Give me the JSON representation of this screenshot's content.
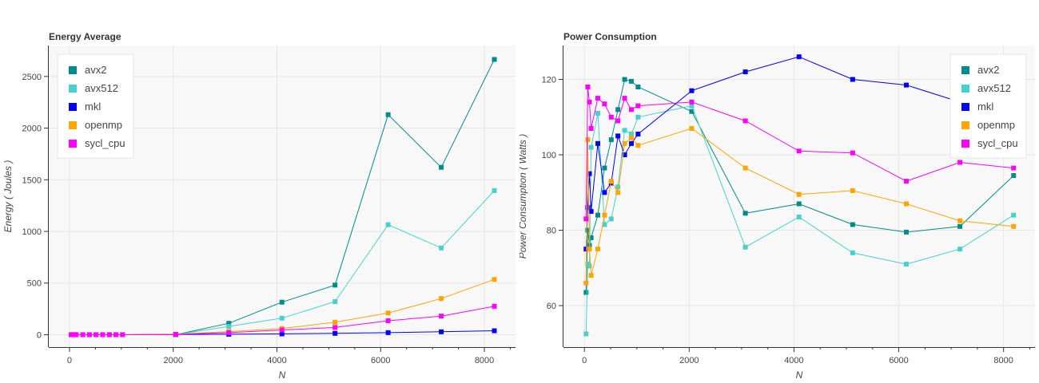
{
  "colors": {
    "avx2": "#008b8b",
    "avx512": "#48d1cc",
    "mkl": "#0000ff",
    "openmp": "#ffa500",
    "sycl_cpu": "#ff00ff"
  },
  "chart_data": [
    {
      "type": "line",
      "title": "Energy Average",
      "xlabel": "N",
      "ylabel": "Energy ( Joules )",
      "xlim": [
        -400,
        8600
      ],
      "ylim": [
        -120,
        2800
      ],
      "xticks": [
        0,
        2000,
        4000,
        6000,
        8000
      ],
      "yticks": [
        0,
        500,
        1000,
        1500,
        2000,
        2500
      ],
      "grid": true,
      "legend_position": "top-left",
      "series": [
        {
          "name": "avx2",
          "x": [
            2048,
            3072,
            4096,
            5120,
            6144,
            7168,
            8192
          ],
          "y": [
            0,
            110,
            315,
            480,
            2130,
            1620,
            2665
          ]
        },
        {
          "name": "avx512",
          "x": [
            2048,
            3072,
            4096,
            5120,
            6144,
            7168,
            8192
          ],
          "y": [
            0,
            80,
            160,
            320,
            1065,
            840,
            1395
          ]
        },
        {
          "name": "mkl",
          "x": [
            32,
            64,
            96,
            128,
            256,
            384,
            512,
            640,
            768,
            896,
            1024,
            2048,
            3072,
            4096,
            5120,
            6144,
            7168,
            8192
          ],
          "y": [
            0,
            0,
            0,
            0,
            0,
            0,
            0,
            0,
            0,
            0,
            0,
            2,
            4,
            8,
            13,
            20,
            28,
            38
          ]
        },
        {
          "name": "openmp",
          "x": [
            32,
            64,
            96,
            128,
            256,
            384,
            512,
            640,
            768,
            896,
            1024,
            2048,
            3072,
            4096,
            5120,
            6144,
            7168,
            8192
          ],
          "y": [
            0,
            0,
            0,
            0,
            0,
            0,
            0,
            0,
            0,
            0,
            0,
            5,
            30,
            60,
            120,
            210,
            350,
            535
          ]
        },
        {
          "name": "sycl_cpu",
          "x": [
            32,
            64,
            96,
            128,
            256,
            384,
            512,
            640,
            768,
            896,
            1024,
            2048,
            3072,
            4096,
            5120,
            6144,
            7168,
            8192
          ],
          "y": [
            0,
            0,
            0,
            0,
            0,
            0,
            0,
            0,
            0,
            0,
            0,
            3,
            20,
            45,
            70,
            135,
            180,
            275
          ]
        }
      ]
    },
    {
      "type": "line",
      "title": "Power Consumption",
      "xlabel": "N",
      "ylabel": "Power Consumption ( Watts )",
      "xlim": [
        -400,
        8600
      ],
      "ylim": [
        49,
        129
      ],
      "xticks": [
        0,
        2000,
        4000,
        6000,
        8000
      ],
      "yticks": [
        60,
        80,
        100,
        120
      ],
      "grid": true,
      "legend_position": "top-right",
      "series": [
        {
          "name": "avx2",
          "x": [
            32,
            64,
            96,
            128,
            256,
            384,
            512,
            640,
            768,
            896,
            1024,
            2048,
            3072,
            4096,
            5120,
            6144,
            7168,
            8192
          ],
          "y": [
            63.5,
            80,
            76,
            78,
            84,
            96.5,
            104,
            112,
            120,
            119.5,
            118,
            111.5,
            84.5,
            87,
            81.5,
            79.5,
            81,
            94.5
          ]
        },
        {
          "name": "avx512",
          "x": [
            32,
            64,
            96,
            128,
            256,
            384,
            512,
            640,
            768,
            896,
            1024,
            2048,
            3072,
            4096,
            5120,
            6144,
            7168,
            8192
          ],
          "y": [
            52.5,
            71,
            70.5,
            102,
            111,
            81.5,
            83,
            91.5,
            106.5,
            105.5,
            110,
            113,
            75.5,
            83.5,
            74,
            71,
            75,
            84
          ]
        },
        {
          "name": "mkl",
          "x": [
            32,
            64,
            96,
            128,
            256,
            384,
            512,
            640,
            768,
            896,
            1024,
            2048,
            3072,
            4096,
            5120,
            6144,
            7168,
            8192
          ],
          "y": [
            75,
            86,
            95,
            85,
            103,
            90,
            92.5,
            105,
            100,
            103,
            105.5,
            117,
            122,
            126,
            120,
            118.5,
            114,
            114
          ]
        },
        {
          "name": "openmp",
          "x": [
            32,
            64,
            96,
            128,
            256,
            384,
            512,
            640,
            768,
            896,
            1024,
            2048,
            3072,
            4096,
            5120,
            6144,
            7168,
            8192
          ],
          "y": [
            66,
            104,
            75,
            68,
            75,
            84,
            93,
            90,
            103,
            104.5,
            102.5,
            107,
            96.5,
            89.5,
            90.5,
            87,
            82.5,
            81
          ]
        },
        {
          "name": "sycl_cpu",
          "x": [
            32,
            64,
            96,
            128,
            256,
            384,
            512,
            640,
            768,
            896,
            1024,
            2048,
            3072,
            4096,
            5120,
            6144,
            7168,
            8192
          ],
          "y": [
            83,
            118,
            114,
            107,
            115,
            113.5,
            110,
            109,
            115,
            112,
            113,
            114,
            109,
            101,
            100.5,
            93,
            98,
            96.5
          ]
        }
      ]
    }
  ]
}
